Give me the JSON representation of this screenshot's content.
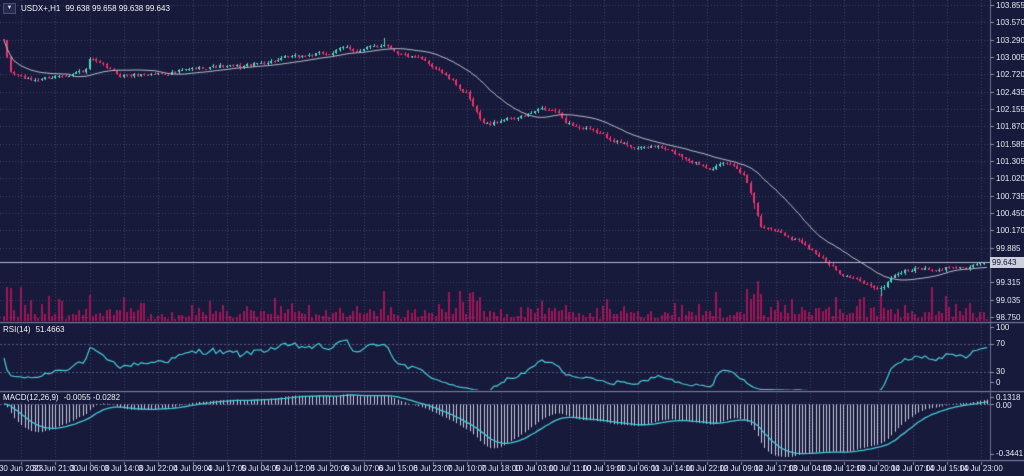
{
  "title": {
    "symbol_period": "USDX+,H1",
    "ohlc": "99.638 99.658 99.638 99.643"
  },
  "main": {
    "current_price": "99.643",
    "price_axis_labels": [
      "103.855",
      "103.570",
      "103.290",
      "103.005",
      "102.720",
      "102.435",
      "102.155",
      "101.870",
      "101.585",
      "101.305",
      "101.020",
      "100.735",
      "100.450",
      "100.170",
      "99.885",
      "99.315",
      "99.035",
      "98.750"
    ]
  },
  "rsi": {
    "label": "RSI(14)",
    "value": "51.4663",
    "axis_labels": [
      "100",
      "70",
      "30",
      "0"
    ],
    "levels": [
      70,
      30
    ]
  },
  "macd": {
    "label": "MACD(12,26,9)",
    "values": "-0.0055 -0.0282",
    "axis_max": "0.1318",
    "axis_zero": "0.00",
    "axis_min": "-0.3441"
  },
  "time_axis": {
    "labels": [
      "30 Jun 2023",
      "30 Jun 21:00",
      "3 Jul 06:00",
      "3 Jul 14:00",
      "3 Jul 22:00",
      "4 Jul 09:00",
      "4 Jul 17:00",
      "5 Jul 04:00",
      "5 Jul 12:00",
      "5 Jul 20:00",
      "6 Jul 07:00",
      "6 Jul 15:00",
      "6 Jul 23:00",
      "7 Jul 10:00",
      "7 Jul 18:00",
      "10 Jul 03:00",
      "10 Jul 11:00",
      "10 Jul 19:00",
      "11 Jul 06:00",
      "11 Jul 14:00",
      "11 Jul 22:00",
      "12 Jul 09:00",
      "12 Jul 17:00",
      "13 Jul 04:00",
      "13 Jul 12:00",
      "13 Jul 20:00",
      "14 Jul 07:00",
      "14 Jul 15:00",
      "14 Jul 23:00"
    ]
  },
  "colors": {
    "background": "#171a3a",
    "grid": "#3e4368",
    "bull": "#54d7c8",
    "bear": "#f0316d",
    "ma_line": "#b7bac6",
    "volume": "#a01356",
    "indicator_line": "#47cbd9",
    "macd_histogram": "#c9cde0",
    "axis_text": "#e6e8f2",
    "separator": "#7a7e96",
    "price_tag_bg": "#ccd0dc",
    "price_tag_text": "#10133a",
    "current_price_line": "#b6bac8",
    "levels": "#555a80"
  },
  "chart_data": {
    "type": "candlestick",
    "symbol": "USDX+",
    "timeframe": "H1",
    "title": "USDX+,H1 99.638 99.658 99.638 99.643",
    "visible_time_range": [
      "30 Jun 2023 00:00",
      "14 Jul 2023 23:00"
    ],
    "visible_price_range": [
      98.685,
      103.937
    ],
    "candle_count": 288,
    "last_candle": {
      "open": 99.638,
      "high": 99.658,
      "low": 99.638,
      "close": 99.643
    },
    "current_price": 99.643,
    "indicators": {
      "ma_period": 20,
      "rsi_period": 14,
      "rsi_last": 51.4663,
      "rsi_levels": [
        70,
        30
      ],
      "macd_params": [
        12,
        26,
        9
      ],
      "macd_last": -0.0055,
      "macd_signal_last": -0.0282,
      "macd_scale": {
        "max": 0.1318,
        "zero": 0.0,
        "min": -0.3441
      }
    },
    "series": {
      "close_price_keypoints": [
        [
          0,
          103.25
        ],
        [
          2,
          102.75
        ],
        [
          8,
          102.62
        ],
        [
          16,
          102.7
        ],
        [
          24,
          102.78
        ],
        [
          25,
          102.97
        ],
        [
          28,
          102.88
        ],
        [
          34,
          102.7
        ],
        [
          43,
          102.72
        ],
        [
          51,
          102.76
        ],
        [
          60,
          102.85
        ],
        [
          69,
          102.84
        ],
        [
          78,
          102.94
        ],
        [
          87,
          103.02
        ],
        [
          95,
          103.06
        ],
        [
          100,
          103.16
        ],
        [
          104,
          103.1
        ],
        [
          108,
          103.18
        ],
        [
          111,
          103.22
        ],
        [
          116,
          103.05
        ],
        [
          122,
          102.95
        ],
        [
          127,
          102.8
        ],
        [
          132,
          102.55
        ],
        [
          135,
          102.4
        ],
        [
          139,
          101.97
        ],
        [
          142,
          101.9
        ],
        [
          146,
          101.99
        ],
        [
          151,
          102.02
        ],
        [
          157,
          102.15
        ],
        [
          161,
          102.12
        ],
        [
          164,
          101.95
        ],
        [
          168,
          101.85
        ],
        [
          174,
          101.75
        ],
        [
          180,
          101.6
        ],
        [
          186,
          101.5
        ],
        [
          190,
          101.55
        ],
        [
          195,
          101.45
        ],
        [
          201,
          101.3
        ],
        [
          206,
          101.2
        ],
        [
          212,
          101.25
        ],
        [
          216,
          101.1
        ],
        [
          219,
          100.65
        ],
        [
          221,
          100.22
        ],
        [
          225,
          100.18
        ],
        [
          230,
          100.05
        ],
        [
          234,
          99.95
        ],
        [
          239,
          99.7
        ],
        [
          243,
          99.5
        ],
        [
          247,
          99.4
        ],
        [
          252,
          99.28
        ],
        [
          256,
          99.2
        ],
        [
          260,
          99.45
        ],
        [
          263,
          99.5
        ],
        [
          268,
          99.55
        ],
        [
          272,
          99.48
        ],
        [
          277,
          99.6
        ],
        [
          281,
          99.55
        ],
        [
          285,
          99.62
        ],
        [
          287,
          99.643
        ]
      ],
      "wick_events": [
        [
          111,
          0.1,
          "high"
        ],
        [
          219,
          0.06,
          "low"
        ],
        [
          256,
          0.09,
          "low"
        ]
      ],
      "volume_spikes": [
        [
          5,
          0.85
        ],
        [
          16,
          0.55
        ],
        [
          25,
          0.65
        ],
        [
          60,
          0.5
        ],
        [
          111,
          0.75
        ],
        [
          130,
          0.6
        ],
        [
          136,
          0.7
        ],
        [
          157,
          0.5
        ],
        [
          217,
          0.8
        ],
        [
          220,
          1.0
        ],
        [
          230,
          0.55
        ],
        [
          243,
          0.6
        ],
        [
          256,
          0.65
        ],
        [
          271,
          0.85
        ],
        [
          282,
          0.45
        ]
      ]
    },
    "panels": [
      "price+volume",
      "RSI",
      "MACD"
    ],
    "grid": true,
    "legend_position": "top-left"
  }
}
